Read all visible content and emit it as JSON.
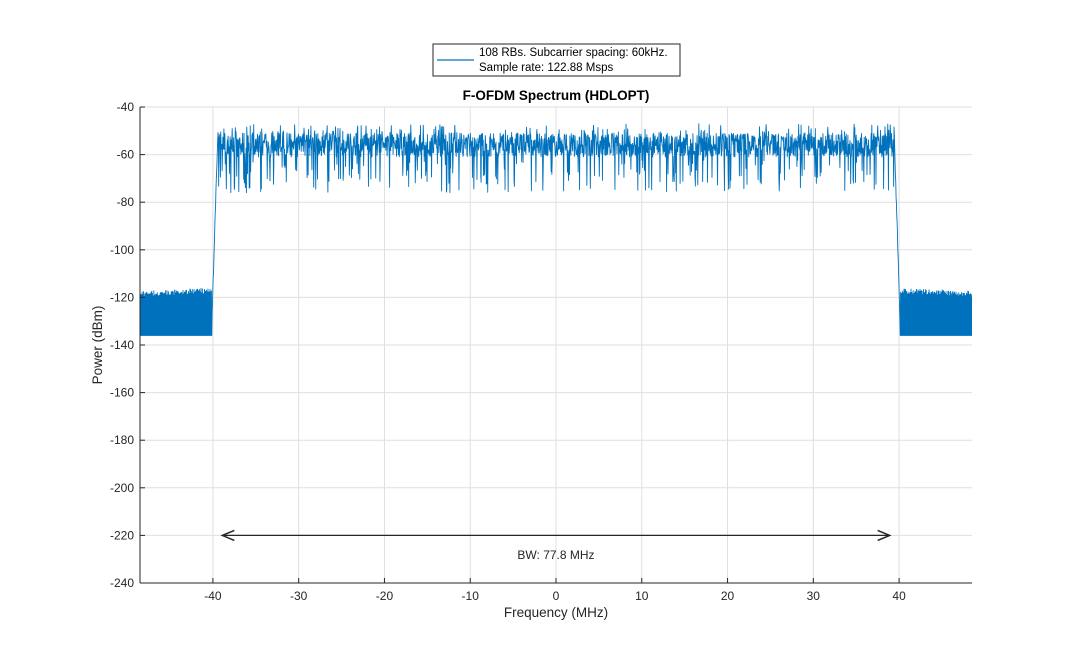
{
  "chart_data": {
    "type": "line",
    "title": "F-OFDM Spectrum (HDLOPT)",
    "xlabel": "Frequency (MHz)",
    "ylabel": "Power (dBm)",
    "xlim": [
      -48.5,
      48.5
    ],
    "ylim": [
      -240,
      -40
    ],
    "xticks": [
      -40,
      -30,
      -20,
      -10,
      0,
      10,
      20,
      30,
      40
    ],
    "yticks": [
      -40,
      -60,
      -80,
      -100,
      -120,
      -140,
      -160,
      -180,
      -200,
      -220,
      -240
    ],
    "grid": true,
    "legend": {
      "placement": "top-center-outside",
      "entries": [
        "108 RBs. Subcarrier spacing: 60kHz.",
        "Sample rate: 122.88 Msps"
      ]
    },
    "series": [
      {
        "name": "108 RBs. Subcarrier spacing: 60kHz. Sample rate: 122.88 Msps",
        "color": "#0072bd",
        "profile": {
          "out_of_band_range": [
            -136,
            -116
          ],
          "in_band_range": [
            -84,
            -47
          ],
          "in_band_typical": -56,
          "band_edges_mhz": [
            -39.4,
            39.4
          ],
          "transition_edges_mhz": [
            -40.1,
            40.1
          ]
        }
      }
    ],
    "annotations": [
      {
        "type": "double-arrow",
        "from": [
          -38.9,
          -220
        ],
        "to": [
          38.9,
          -220
        ],
        "color": "#262626"
      },
      {
        "type": "text",
        "text": "BW: 77.8 MHz",
        "at": [
          0,
          -230
        ]
      }
    ]
  }
}
